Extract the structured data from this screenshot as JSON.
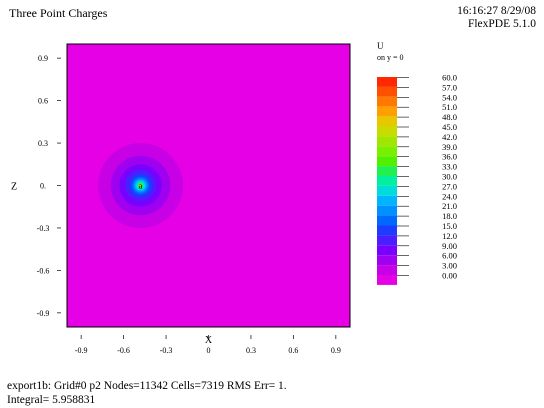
{
  "header": {
    "title": "Three Point Charges",
    "timestamp": "16:16:27 8/29/08",
    "version": "FlexPDE 5.1.0"
  },
  "footer": {
    "line1": "export1b:  Grid#0  p2  Nodes=11342 Cells=7319 RMS Err= 1.",
    "line2": "Integral=  5.958831"
  },
  "colors": {
    "background_field": "#e600e6",
    "frame": "#000000"
  },
  "chart_data": {
    "type": "heatmap",
    "title": "",
    "xlabel": "X",
    "ylabel": "Z",
    "xlim": [
      -1.0,
      1.0
    ],
    "ylim": [
      -1.0,
      1.0
    ],
    "x_ticks": [
      "-0.9",
      "-0.6",
      "-0.3",
      "0",
      "0.3",
      "0.6",
      "0.9"
    ],
    "y_ticks": [
      "0.9",
      "0.6",
      "0.3",
      "0.",
      "-0.3",
      "-0.6",
      "-0.9"
    ],
    "x_tick_values": [
      -0.9,
      -0.6,
      -0.3,
      0,
      0.3,
      0.6,
      0.9
    ],
    "y_tick_values": [
      0.9,
      0.6,
      0.3,
      0,
      -0.3,
      -0.6,
      -0.9
    ],
    "legend": {
      "variable": "U",
      "subtitle": "on y = 0",
      "levels": [
        "60.0",
        "57.0",
        "54.0",
        "51.0",
        "48.0",
        "45.0",
        "42.0",
        "39.0",
        "36.0",
        "33.0",
        "30.0",
        "27.0",
        "24.0",
        "21.0",
        "18.0",
        "15.0",
        "12.0",
        "9.00",
        "6.00",
        "3.00",
        "0.00"
      ],
      "colors": [
        "#ff2800",
        "#ff5000",
        "#ff7800",
        "#ffa000",
        "#e6c800",
        "#c8dc00",
        "#a0e600",
        "#78f000",
        "#50f000",
        "#20f050",
        "#00f0a0",
        "#00dcdc",
        "#00b4ff",
        "#0090ff",
        "#0068ff",
        "#1e3cff",
        "#4b1eff",
        "#7800ff",
        "#a000f0",
        "#c800e6",
        "#e600e6"
      ]
    },
    "point_charge": {
      "x": -0.48,
      "z": 0.0
    },
    "contours": [
      {
        "level": 0.0,
        "radius": 0.0,
        "color": "#e600e6"
      },
      {
        "level": 3.0,
        "radius": 0.3,
        "color": "#c800e6"
      },
      {
        "level": 6.0,
        "radius": 0.21,
        "color": "#a000f0"
      },
      {
        "level": 9.0,
        "radius": 0.15,
        "color": "#7800ff"
      },
      {
        "level": 12.0,
        "radius": 0.11,
        "color": "#4b1eff"
      },
      {
        "level": 15.0,
        "radius": 0.08,
        "color": "#1e3cff"
      },
      {
        "level": 18.0,
        "radius": 0.062,
        "color": "#0068ff"
      },
      {
        "level": 21.0,
        "radius": 0.05,
        "color": "#0090ff"
      },
      {
        "level": 24.0,
        "radius": 0.04,
        "color": "#00b4ff"
      },
      {
        "level": 27.0,
        "radius": 0.032,
        "color": "#00dcdc"
      },
      {
        "level": 30.0,
        "radius": 0.024,
        "color": "#00f0a0"
      },
      {
        "level": 36.0,
        "radius": 0.016,
        "color": "#50f000"
      },
      {
        "level": 45.0,
        "radius": 0.009,
        "color": "#c8dc00"
      }
    ]
  }
}
